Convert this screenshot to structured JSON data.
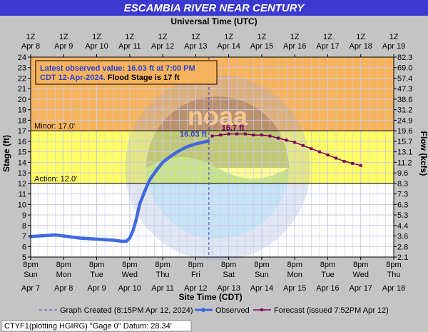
{
  "chart_data": {
    "type": "line",
    "title": "ESCAMBIA RIVER NEAR CENTURY",
    "top_axis_title": "Universal Time (UTC)",
    "bottom_axis_title": "Site Time (CDT)",
    "ylabel_left": "Stage (ft)",
    "ylabel_right": "Flow (kcfs)",
    "ylim": [
      5,
      24
    ],
    "y_ticks": [
      "5",
      "6",
      "7",
      "8",
      "9",
      "10",
      "11",
      "12",
      "13",
      "14",
      "15",
      "16",
      "17",
      "18",
      "19",
      "20",
      "21",
      "22",
      "23",
      "24"
    ],
    "flow_ticks": [
      "2.1",
      "2.8",
      "3.6",
      "4.4",
      "5.3",
      "6.3",
      "7.3",
      "8.3",
      "9.6",
      "11.2",
      "13.1",
      "15.7",
      "19.6",
      "24.9",
      "31.2",
      "38.6",
      "47.3",
      "57.4",
      "69.0",
      "82.3"
    ],
    "top_ticks_time": [
      "1Z",
      "1Z",
      "1Z",
      "1Z",
      "1Z",
      "1Z",
      "1Z",
      "1Z",
      "1Z",
      "1Z",
      "1Z",
      "1Z"
    ],
    "top_ticks_date": [
      "Apr  8",
      "Apr 9",
      "Apr 10",
      "Apr 11",
      "Apr 12",
      "Apr 13",
      "Apr 14",
      "Apr 15",
      "Apr 16",
      "Apr 17",
      "Apr 18",
      "Apr 19"
    ],
    "bottom_ticks_time": [
      "8pm",
      "8pm",
      "8pm",
      "8pm",
      "8pm",
      "8pm",
      "8pm",
      "8pm",
      "8pm",
      "8pm",
      "8pm",
      "8pm"
    ],
    "bottom_ticks_day": [
      "Sun",
      "Mon",
      "Tue",
      "Wed",
      "Thu",
      "Fri",
      "Sat",
      "Sun",
      "Mon",
      "Tue",
      "Wed",
      "Thu"
    ],
    "bottom_ticks_date": [
      "Apr 7",
      "Apr 8",
      "Apr 9",
      "Apr 10",
      "Apr 11",
      "Apr 12",
      "Apr 13",
      "Apr 14",
      "Apr 15",
      "Apr 16",
      "Apr 17",
      "Apr 18"
    ],
    "x_range_days_cdt": [
      "Apr 7 8pm",
      "Apr 18 8pm"
    ],
    "zones": [
      {
        "name": "above-minor",
        "from": 17,
        "to": 24,
        "color": "#f7b35b"
      },
      {
        "name": "action-to-minor",
        "from": 12,
        "to": 17,
        "color": "#ffff66"
      },
      {
        "name": "below-action",
        "from": 5,
        "to": 12,
        "color": "#ffffff"
      }
    ],
    "thresholds": [
      {
        "label": "Minor: 17.0'",
        "value": 17
      },
      {
        "label": "Action: 12.0'",
        "value": 12
      }
    ],
    "graph_created_x": 5.4,
    "observed": {
      "name": "Observed",
      "color": "#4169e1",
      "x": [
        0,
        0.25,
        0.5,
        0.75,
        1.0,
        1.25,
        1.5,
        1.75,
        2.0,
        2.25,
        2.5,
        2.75,
        2.9,
        3.0,
        3.1,
        3.2,
        3.3,
        3.45,
        3.6,
        3.8,
        4.0,
        4.25,
        4.5,
        4.75,
        5.0,
        5.2,
        5.38
      ],
      "y": [
        6.95,
        7.0,
        7.05,
        7.1,
        7.0,
        6.9,
        6.8,
        6.75,
        6.7,
        6.65,
        6.6,
        6.5,
        6.5,
        6.8,
        7.5,
        8.6,
        10.0,
        11.2,
        12.3,
        13.2,
        14.0,
        14.6,
        15.1,
        15.5,
        15.75,
        15.9,
        16.03
      ]
    },
    "forecast": {
      "name": "Forecast (issued 7:52PM Apr 12)",
      "color": "#800060",
      "x": [
        5.5,
        5.75,
        6.0,
        6.25,
        6.5,
        6.75,
        7.0,
        7.25,
        7.5,
        7.75,
        8.0,
        8.25,
        8.5,
        8.75,
        9.0,
        9.25,
        9.5,
        9.75,
        10.0
      ],
      "y": [
        16.5,
        16.6,
        16.7,
        16.7,
        16.7,
        16.6,
        16.6,
        16.5,
        16.3,
        16.1,
        15.9,
        15.6,
        15.3,
        15.0,
        14.7,
        14.4,
        14.1,
        13.9,
        13.7
      ]
    },
    "annotations": {
      "observed_label": "16.03 ft",
      "forecast_label": "16.7 ft",
      "box_line1": "Latest observed value: 16.03 ft at 7:00 PM",
      "box_line2a": "CDT 12-Apr-2024.",
      "box_line2b": " Flood Stage is 17 ft"
    },
    "legend": {
      "placement": "bottom",
      "created": "Graph Created (8:15PM Apr 12, 2024)",
      "observed": "Observed",
      "forecast": "Forecast (issued 7:52PM Apr 12)"
    },
    "footer": "CTYF1(plotting HGIRG) \"Gage 0\" Datum: 28.34'",
    "watermark": "NATIONAL OCEANIC AND ATMOSPHERIC ADMINISTRATION · U.S. DEPARTMENT OF COMMERCE · noaa",
    "colors": {
      "title_bg": "#3a3ad0",
      "frame_bg": "#c4c4c4",
      "grid": "#c8c8e8"
    }
  }
}
